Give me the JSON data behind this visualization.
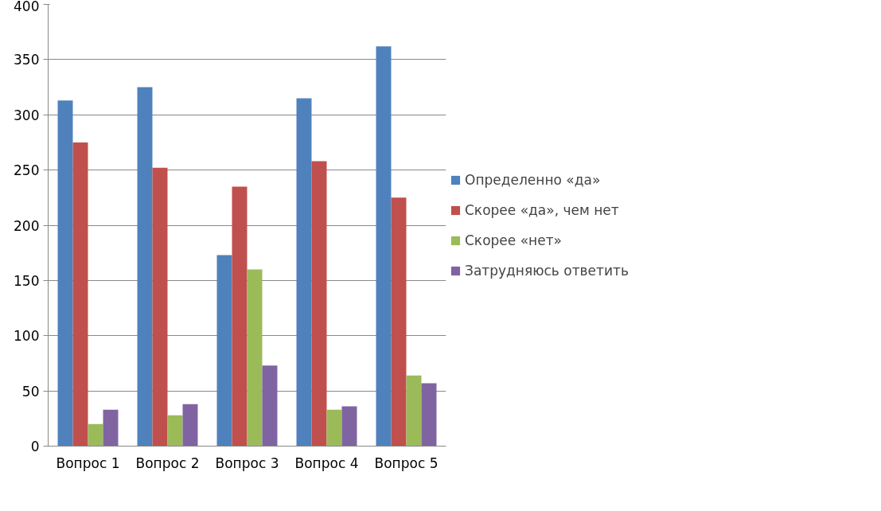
{
  "chart_data": {
    "type": "bar",
    "categories": [
      "Вопрос 1",
      "Вопрос 2",
      "Вопрос 3",
      "Вопрос 4",
      "Вопрос 5"
    ],
    "series": [
      {
        "name": "Определенно «да»",
        "color": "#4f81bd",
        "values": [
          313,
          325,
          173,
          315,
          362
        ]
      },
      {
        "name": "Скорее «да», чем нет",
        "color": "#c0504d",
        "values": [
          275,
          252,
          235,
          258,
          225
        ]
      },
      {
        "name": "Скорее «нет»",
        "color": "#9bbb59",
        "values": [
          20,
          28,
          160,
          33,
          64
        ]
      },
      {
        "name": "Затрудняюсь ответить",
        "color": "#8064a2",
        "values": [
          33,
          38,
          73,
          36,
          57
        ]
      }
    ],
    "ylim": [
      0,
      400
    ],
    "yticks": [
      0,
      50,
      100,
      150,
      200,
      250,
      300,
      350,
      400
    ],
    "grid": "y",
    "legend": "right"
  }
}
